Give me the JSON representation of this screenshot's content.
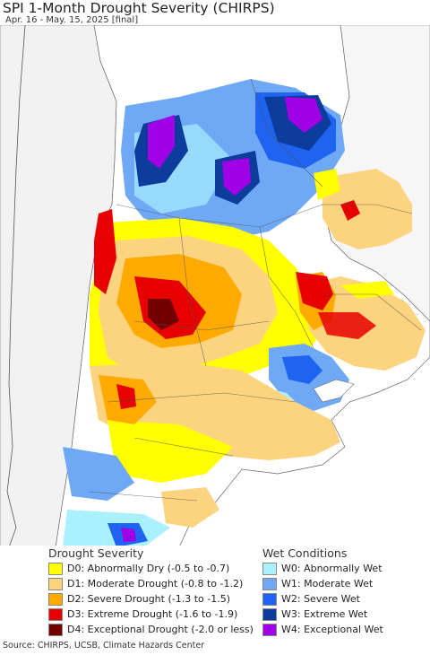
{
  "title": "SPI 1-Month Drought Severity (CHIRPS)",
  "subtitle": "Apr. 16 - May. 15, 2025 [final]",
  "legend": {
    "drought": {
      "heading": "Drought Severity",
      "items": [
        {
          "label": "D0: Abnormally Dry (-0.5 to -0.7)",
          "color": "#ffff00"
        },
        {
          "label": "D1: Moderate Drought (-0.8 to -1.2)",
          "color": "#fcd37f"
        },
        {
          "label": "D2: Severe Drought (-1.3 to -1.5)",
          "color": "#ffaa00"
        },
        {
          "label": "D3: Extreme Drought (-1.6 to -1.9)",
          "color": "#e60000"
        },
        {
          "label": "D4: Exceptional Drought (-2.0 or less)",
          "color": "#730000"
        }
      ]
    },
    "wet": {
      "heading": "Wet Conditions",
      "items": [
        {
          "label": "W0: Abnormally Wet",
          "color": "#aaf0ff"
        },
        {
          "label": "W1: Moderate Wet",
          "color": "#6fa8f5"
        },
        {
          "label": "W2: Severe Wet",
          "color": "#1e64f0"
        },
        {
          "label": "W3: Extreme Wet",
          "color": "#0c3c9c"
        },
        {
          "label": "W4: Exceptional Wet",
          "color": "#a000e6"
        }
      ]
    }
  },
  "source": "Source: CHIRPS, UCSB, Climate Hazards Center"
}
